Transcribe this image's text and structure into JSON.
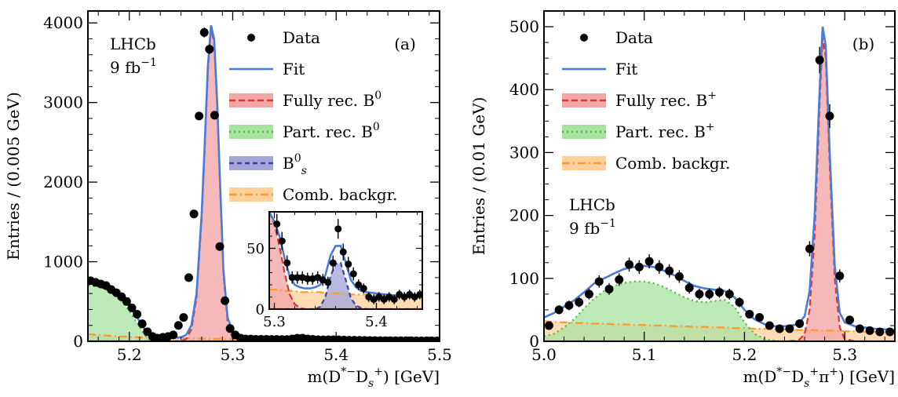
{
  "chart_data": [
    {
      "type": "line",
      "panel_label": "(a)",
      "watermark": [
        "LHCb",
        "9 fb",
        "−1"
      ],
      "xlabel_parts": [
        "m(D",
        "*−",
        "D",
        "s",
        "+",
        ") [GeV]"
      ],
      "ylabel": "Entries / (0.005 GeV)",
      "xlim": [
        5.16,
        5.5
      ],
      "ylim": [
        0,
        4150
      ],
      "xticks": [
        {
          "v": 5.2,
          "t": "5.2"
        },
        {
          "v": 5.3,
          "t": "5.3"
        },
        {
          "v": 5.4,
          "t": "5.4"
        },
        {
          "v": 5.5,
          "t": "5.5"
        }
      ],
      "yticks": [
        {
          "v": 0,
          "t": "0"
        },
        {
          "v": 1000,
          "t": "1000"
        },
        {
          "v": 2000,
          "t": "2000"
        },
        {
          "v": 3000,
          "t": "3000"
        },
        {
          "v": 4000,
          "t": "4000"
        }
      ],
      "legend": {
        "position": "top-right",
        "items": [
          {
            "key": "data",
            "label": "Data"
          },
          {
            "key": "fit",
            "label": "Fit"
          },
          {
            "key": "full",
            "label": "Fully rec. B",
            "sup": "0"
          },
          {
            "key": "part",
            "label": "Part. rec. B",
            "sup": "0"
          },
          {
            "key": "bs",
            "label": "B",
            "sub": "s",
            "sup": "0"
          },
          {
            "key": "comb",
            "label": "Comb. backgr."
          }
        ]
      },
      "data_points": {
        "x": [
          5.1625,
          5.1675,
          5.1725,
          5.1775,
          5.1825,
          5.1875,
          5.1925,
          5.1975,
          5.2025,
          5.2075,
          5.2125,
          5.2175,
          5.2225,
          5.2275,
          5.2325,
          5.2375,
          5.2425,
          5.2475,
          5.2525,
          5.2575,
          5.2625,
          5.2675,
          5.2725,
          5.2775,
          5.2825,
          5.2875,
          5.2925,
          5.2975,
          5.3025,
          5.3075,
          5.3125,
          5.3175,
          5.3225,
          5.3275,
          5.3325,
          5.3375,
          5.3425,
          5.3475,
          5.3525,
          5.3575,
          5.3625,
          5.3675,
          5.3725,
          5.3775,
          5.3825,
          5.3875,
          5.3925,
          5.3975,
          5.4025,
          5.4075,
          5.4125,
          5.4175,
          5.4225,
          5.4275,
          5.4325,
          5.4375,
          5.4425,
          5.4475,
          5.4525,
          5.4575,
          5.4625,
          5.4675,
          5.4725,
          5.4775,
          5.4825,
          5.4875,
          5.4925,
          5.4975
        ],
        "y": [
          760,
          740,
          720,
          700,
          650,
          610,
          560,
          500,
          420,
          340,
          220,
          120,
          60,
          40,
          50,
          60,
          80,
          200,
          300,
          800,
          1600,
          2830,
          3880,
          3670,
          2840,
          1190,
          510,
          160,
          80,
          40,
          30,
          28,
          25,
          25,
          25,
          24,
          24,
          22,
          22,
          30,
          40,
          40,
          30,
          25,
          20,
          18,
          20,
          20,
          18,
          16,
          14,
          13,
          12,
          11,
          10,
          10,
          9,
          8,
          8,
          8,
          7,
          7,
          7,
          6,
          6,
          6,
          6,
          5
        ]
      },
      "components": {
        "x": [
          5.16,
          5.17,
          5.18,
          5.19,
          5.2,
          5.205,
          5.21,
          5.215,
          5.22,
          5.225,
          5.23,
          5.24,
          5.25,
          5.255,
          5.26,
          5.265,
          5.27,
          5.273,
          5.276,
          5.279,
          5.282,
          5.285,
          5.288,
          5.291,
          5.295,
          5.3,
          5.305,
          5.31,
          5.32,
          5.33,
          5.34,
          5.35,
          5.36,
          5.365,
          5.37,
          5.38,
          5.39,
          5.4,
          5.42,
          5.44,
          5.46,
          5.48,
          5.5
        ],
        "fit": [
          770,
          740,
          690,
          600,
          440,
          350,
          250,
          140,
          65,
          50,
          45,
          45,
          50,
          80,
          200,
          600,
          1600,
          2500,
          3450,
          3970,
          3800,
          3000,
          1900,
          900,
          300,
          120,
          60,
          40,
          30,
          25,
          25,
          28,
          40,
          42,
          35,
          25,
          20,
          18,
          15,
          12,
          10,
          8,
          6
        ],
        "full": [
          0,
          0,
          0,
          0,
          0,
          0,
          0,
          0,
          0,
          0,
          0,
          0,
          5,
          30,
          150,
          550,
          1550,
          2450,
          3400,
          3920,
          3760,
          2960,
          1860,
          860,
          250,
          40,
          5,
          0,
          0,
          0,
          0,
          0,
          0,
          0,
          0,
          0,
          0,
          0,
          0,
          0,
          0,
          0,
          0
        ],
        "part": [
          700,
          690,
          640,
          550,
          380,
          280,
          180,
          80,
          10,
          0,
          0,
          0,
          0,
          0,
          0,
          0,
          0,
          0,
          0,
          0,
          0,
          0,
          0,
          0,
          0,
          0,
          0,
          0,
          0,
          0,
          0,
          0,
          0,
          0,
          0,
          0,
          0,
          0,
          0,
          0,
          0,
          0,
          0
        ],
        "bs": [
          0,
          0,
          0,
          0,
          0,
          0,
          0,
          0,
          0,
          0,
          0,
          0,
          0,
          0,
          0,
          0,
          0,
          0,
          0,
          0,
          0,
          0,
          0,
          0,
          0,
          0,
          0,
          0,
          0,
          0,
          1,
          5,
          15,
          17,
          12,
          3,
          0,
          0,
          0,
          0,
          0,
          0,
          0
        ],
        "comb": [
          90,
          80,
          70,
          62,
          55,
          52,
          50,
          48,
          46,
          44,
          42,
          40,
          38,
          37,
          36,
          35,
          34,
          33,
          33,
          32,
          32,
          31,
          31,
          30,
          30,
          29,
          28,
          27,
          26,
          25,
          24,
          23,
          22,
          21,
          21,
          20,
          19,
          18,
          16,
          14,
          12,
          10,
          8
        ]
      },
      "inset": {
        "xlim": [
          5.295,
          5.445
        ],
        "ylim": [
          0,
          80
        ],
        "xticks": [
          {
            "v": 5.3,
            "t": "5.3"
          },
          {
            "v": 5.4,
            "t": "5.4"
          }
        ],
        "yticks": [
          {
            "v": 0,
            "t": "0"
          },
          {
            "v": 50,
            "t": "50"
          }
        ],
        "data_points": {
          "x": [
            5.3025,
            5.3075,
            5.3125,
            5.3175,
            5.3225,
            5.3275,
            5.3325,
            5.3375,
            5.3425,
            5.3475,
            5.3525,
            5.3575,
            5.3625,
            5.3675,
            5.3725,
            5.3775,
            5.3825,
            5.3875,
            5.3925,
            5.3975,
            5.4025,
            5.4075,
            5.4125,
            5.4175,
            5.4225,
            5.4275,
            5.4325,
            5.4375,
            5.4425
          ],
          "y": [
            70,
            56,
            38,
            26,
            26,
            26,
            25,
            25,
            26,
            24,
            22,
            38,
            66,
            47,
            37,
            29,
            20,
            17,
            10,
            8,
            10,
            8,
            10,
            8,
            12,
            10,
            12,
            10,
            12
          ]
        },
        "components": {
          "x": [
            5.295,
            5.3,
            5.305,
            5.31,
            5.315,
            5.32,
            5.325,
            5.33,
            5.335,
            5.34,
            5.345,
            5.35,
            5.355,
            5.36,
            5.365,
            5.37,
            5.375,
            5.38,
            5.385,
            5.39,
            5.4,
            5.41,
            5.42,
            5.43,
            5.445
          ],
          "fit": [
            80,
            72,
            60,
            42,
            27,
            20,
            18,
            17,
            17,
            18,
            20,
            28,
            44,
            52,
            52,
            38,
            24,
            18,
            15,
            14,
            13,
            12,
            11,
            10,
            10
          ],
          "full": [
            80,
            70,
            52,
            30,
            12,
            4,
            1,
            0,
            0,
            0,
            0,
            0,
            0,
            0,
            0,
            0,
            0,
            0,
            0,
            0,
            0,
            0,
            0,
            0,
            0
          ],
          "bs": [
            0,
            0,
            0,
            0,
            0,
            0,
            0,
            0,
            0,
            0,
            2,
            10,
            27,
            37,
            38,
            24,
            9,
            3,
            1,
            0,
            0,
            0,
            0,
            0,
            0
          ],
          "comb": [
            16,
            16,
            16,
            15,
            15,
            15,
            14,
            14,
            14,
            14,
            14,
            13,
            13,
            13,
            13,
            13,
            12,
            12,
            12,
            12,
            12,
            11,
            11,
            10,
            10
          ]
        }
      }
    },
    {
      "type": "line",
      "panel_label": "(b)",
      "watermark": [
        "LHCb",
        "9 fb",
        "−1"
      ],
      "xlabel_parts": [
        "m(D",
        "*−",
        "D",
        "s",
        "+",
        "π",
        "+",
        ") [GeV]"
      ],
      "ylabel": "Entries / (0.01 GeV)",
      "xlim": [
        5.0,
        5.35
      ],
      "ylim": [
        0,
        525
      ],
      "xticks": [
        {
          "v": 5.0,
          "t": "5.0"
        },
        {
          "v": 5.1,
          "t": "5.1"
        },
        {
          "v": 5.2,
          "t": "5.2"
        },
        {
          "v": 5.3,
          "t": "5.3"
        }
      ],
      "yticks": [
        {
          "v": 0,
          "t": "0"
        },
        {
          "v": 100,
          "t": "100"
        },
        {
          "v": 200,
          "t": "200"
        },
        {
          "v": 300,
          "t": "300"
        },
        {
          "v": 400,
          "t": "400"
        },
        {
          "v": 500,
          "t": "500"
        }
      ],
      "legend": {
        "position": "top-right",
        "items": [
          {
            "key": "data",
            "label": "Data"
          },
          {
            "key": "fit",
            "label": "Fit"
          },
          {
            "key": "full",
            "label": "Fully rec. B",
            "sup": "+"
          },
          {
            "key": "part",
            "label": "Part. rec. B",
            "sup": "+"
          },
          {
            "key": "comb",
            "label": "Comb. backgr."
          }
        ]
      },
      "data_points": {
        "x": [
          5.005,
          5.015,
          5.025,
          5.035,
          5.045,
          5.055,
          5.065,
          5.075,
          5.085,
          5.095,
          5.105,
          5.115,
          5.125,
          5.135,
          5.145,
          5.155,
          5.165,
          5.175,
          5.185,
          5.195,
          5.205,
          5.215,
          5.225,
          5.235,
          5.245,
          5.255,
          5.265,
          5.275,
          5.285,
          5.295,
          5.305,
          5.315,
          5.325,
          5.335,
          5.345
        ],
        "y": [
          25,
          50,
          57,
          62,
          75,
          95,
          83,
          98,
          122,
          118,
          127,
          118,
          112,
          103,
          85,
          75,
          75,
          78,
          75,
          62,
          43,
          38,
          25,
          20,
          20,
          28,
          147,
          447,
          358,
          104,
          34,
          20,
          17,
          15,
          15
        ]
      },
      "components": {
        "x": [
          5.0,
          5.01,
          5.02,
          5.03,
          5.04,
          5.05,
          5.06,
          5.07,
          5.08,
          5.09,
          5.1,
          5.11,
          5.12,
          5.13,
          5.14,
          5.15,
          5.16,
          5.17,
          5.18,
          5.19,
          5.2,
          5.21,
          5.22,
          5.23,
          5.24,
          5.25,
          5.255,
          5.26,
          5.265,
          5.27,
          5.275,
          5.278,
          5.281,
          5.285,
          5.29,
          5.295,
          5.3,
          5.31,
          5.32,
          5.33,
          5.35
        ],
        "fit": [
          38,
          45,
          55,
          65,
          78,
          92,
          100,
          108,
          115,
          118,
          120,
          118,
          112,
          105,
          96,
          88,
          84,
          82,
          80,
          70,
          50,
          35,
          27,
          24,
          24,
          26,
          30,
          40,
          80,
          200,
          400,
          500,
          470,
          300,
          120,
          45,
          30,
          24,
          22,
          20,
          18
        ],
        "full": [
          0,
          0,
          0,
          0,
          0,
          0,
          0,
          0,
          0,
          0,
          0,
          0,
          0,
          0,
          0,
          0,
          0,
          0,
          0,
          0,
          0,
          0,
          0,
          0,
          0,
          1,
          3,
          12,
          50,
          170,
          380,
          482,
          452,
          280,
          100,
          22,
          4,
          0,
          0,
          0,
          0
        ],
        "part": [
          8,
          12,
          22,
          35,
          52,
          68,
          80,
          88,
          93,
          95,
          95,
          92,
          86,
          78,
          70,
          64,
          62,
          64,
          66,
          55,
          30,
          12,
          4,
          1,
          0,
          0,
          0,
          0,
          0,
          0,
          0,
          0,
          0,
          0,
          0,
          0,
          0,
          0,
          0,
          0,
          0
        ],
        "comb": [
          32,
          31,
          30,
          29,
          29,
          28,
          28,
          27,
          27,
          26,
          26,
          25,
          25,
          24,
          24,
          23,
          23,
          22,
          22,
          21,
          21,
          20,
          20,
          19,
          19,
          18,
          18,
          18,
          18,
          18,
          17,
          17,
          17,
          17,
          17,
          16,
          16,
          16,
          15,
          15,
          14
        ]
      }
    }
  ],
  "colors": {
    "fit": "#4a7bd8",
    "full_line": "#e03131",
    "full_fill": "#f2a7a7",
    "part_line": "#4cbb3a",
    "part_fill": "#a8e2a0",
    "bs_line": "#3344a8",
    "bs_fill": "#a6a7d8",
    "comb_line": "#ff9a28",
    "comb_fill": "#ffd09a",
    "data": "#000000"
  }
}
